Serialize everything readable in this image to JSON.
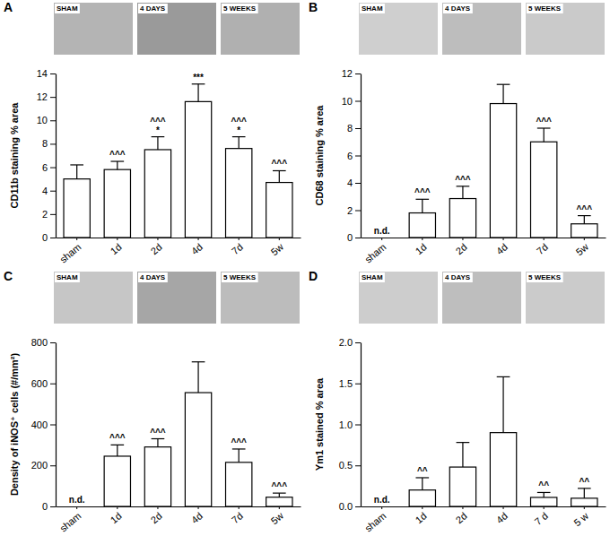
{
  "chart_data": [
    {
      "type": "bar",
      "title": "A",
      "image_labels": [
        "SHAM",
        "4 DAYS",
        "5 WEEKS"
      ],
      "y_label": "CD11b staining % area",
      "categories": [
        "sham",
        "1d",
        "2d",
        "4d",
        "7d",
        "5w"
      ],
      "values": [
        5.0,
        5.8,
        7.5,
        11.6,
        7.6,
        4.7
      ],
      "errors": [
        1.2,
        0.7,
        1.1,
        1.5,
        1.0,
        1.0
      ],
      "annotations": [
        [],
        [
          "^^^"
        ],
        [
          "*",
          "^^^"
        ],
        [
          "***"
        ],
        [
          "*",
          "^^^"
        ],
        [
          "^^^"
        ]
      ],
      "color": "#ffffff",
      "ylim": [
        0,
        14
      ],
      "yticks": [
        0,
        2,
        4,
        6,
        8,
        10,
        12,
        14
      ],
      "grid": false
    },
    {
      "type": "bar",
      "title": "B",
      "image_labels": [
        "SHAM",
        "4 DAYS",
        "5 WEEKS"
      ],
      "y_label": "CD68 staining % area",
      "categories": [
        "sham",
        "1d",
        "2d",
        "4d",
        "7d",
        "5w"
      ],
      "values": [
        null,
        1.8,
        2.85,
        9.8,
        7.0,
        1.0
      ],
      "errors": [
        null,
        1.0,
        0.9,
        1.4,
        1.0,
        0.6
      ],
      "value_labels": [
        "n.d.",
        null,
        null,
        null,
        null,
        null
      ],
      "annotations": [
        [],
        [
          "^^^"
        ],
        [
          "^^^"
        ],
        [],
        [
          "^^^"
        ],
        [
          "^^^"
        ]
      ],
      "color": "#ffffff",
      "ylim": [
        0,
        12
      ],
      "yticks": [
        0,
        2,
        4,
        6,
        8,
        10,
        12
      ],
      "grid": false
    },
    {
      "type": "bar",
      "title": "C",
      "image_labels": [
        "SHAM",
        "4 DAYS",
        "5 WEEKS"
      ],
      "y_label": "Density of iNOS⁺ cells (#/mm²)",
      "categories": [
        "sham",
        "1d",
        "2d",
        "4d",
        "7d",
        "5w"
      ],
      "values": [
        null,
        245,
        290,
        555,
        215,
        45
      ],
      "errors": [
        null,
        55,
        40,
        150,
        65,
        20
      ],
      "value_labels": [
        "n.d.",
        null,
        null,
        null,
        null,
        null
      ],
      "annotations": [
        [],
        [
          "^^^"
        ],
        [
          "^^^"
        ],
        [],
        [
          "^^^"
        ],
        [
          "^^^"
        ]
      ],
      "color": "#ffffff",
      "ylim": [
        0,
        800
      ],
      "yticks": [
        0,
        200,
        400,
        600,
        800
      ],
      "grid": false
    },
    {
      "type": "bar",
      "title": "D",
      "image_labels": [
        "SHAM",
        "4 DAYS",
        "5 WEEKS"
      ],
      "y_label": "Ym1 stained % area",
      "categories": [
        "sham",
        "1d",
        "2d",
        "4d",
        "7 d",
        "5 w"
      ],
      "values": [
        null,
        0.2,
        0.48,
        0.9,
        0.11,
        0.1
      ],
      "errors": [
        null,
        0.15,
        0.3,
        0.68,
        0.06,
        0.12
      ],
      "value_labels": [
        "n.d.",
        null,
        null,
        null,
        null,
        null
      ],
      "annotations": [
        [],
        [
          "^^"
        ],
        [],
        [],
        [
          "^^"
        ],
        [
          "^^"
        ]
      ],
      "color": "#ffffff",
      "ylim": [
        0,
        2.0
      ],
      "yticks": [
        {
          "value": 0,
          "label": "0.0"
        },
        {
          "value": 0.5,
          "label": "0.5"
        },
        {
          "value": 1.0,
          "label": "1.0"
        },
        {
          "value": 1.5,
          "label": "1.5"
        },
        {
          "value": 2.0,
          "label": "2.0"
        }
      ],
      "grid": false
    }
  ]
}
